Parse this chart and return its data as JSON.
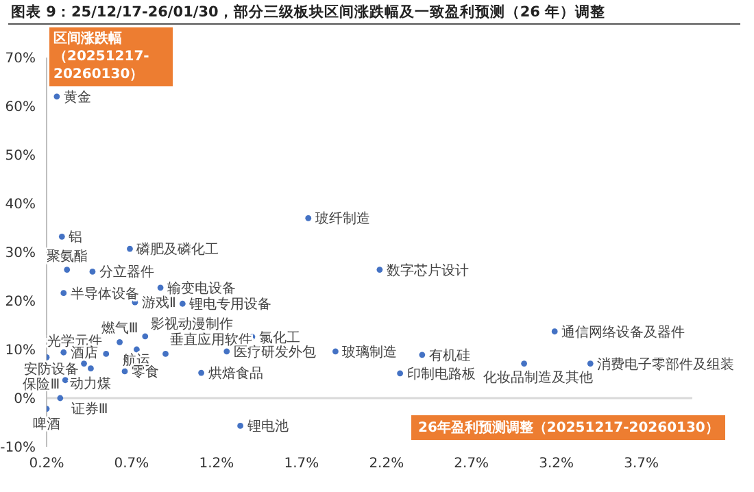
{
  "chart_data": {
    "type": "scatter",
    "title": "图表 9：25/12/17-26/01/30，部分三级板块区间涨跌幅及一致盈利预测（26 年）调整",
    "xlabel": "26年盈利预测调整（20251217-20260130）",
    "ylabel": "区间涨跌幅（20251217-20260130）",
    "marker": "circle",
    "xlim": [
      0.2,
      4.0
    ],
    "xticks": [
      {
        "value": 0.2,
        "label": "0.2%"
      },
      {
        "value": 0.7,
        "label": "0.7%"
      },
      {
        "value": 1.2,
        "label": "1.2%"
      },
      {
        "value": 1.7,
        "label": "1.7%"
      },
      {
        "value": 2.2,
        "label": "2.2%"
      },
      {
        "value": 2.7,
        "label": "2.7%"
      },
      {
        "value": 3.2,
        "label": "3.2%"
      },
      {
        "value": 3.7,
        "label": "3.7%"
      }
    ],
    "ylim": [
      -10,
      70
    ],
    "yticks": [
      {
        "value": -10,
        "label": "-10%"
      },
      {
        "value": 0,
        "label": "0%"
      },
      {
        "value": 10,
        "label": "10%"
      },
      {
        "value": 20,
        "label": "20%"
      },
      {
        "value": 30,
        "label": "30%"
      },
      {
        "value": 40,
        "label": "40%"
      },
      {
        "value": 50,
        "label": "50%"
      },
      {
        "value": 60,
        "label": "60%"
      },
      {
        "value": 70,
        "label": "70%"
      }
    ],
    "ref_lines": [
      {
        "axis": "y",
        "value": 0,
        "color": "#d9d9d9"
      }
    ],
    "series": [
      {
        "color": "#4472c4",
        "x": [
          0.26,
          0.29,
          0.69,
          0.32,
          0.47,
          0.87,
          0.3,
          0.72,
          1.0,
          0.78,
          1.41,
          0.63,
          0.55,
          0.73,
          0.3,
          0.9,
          1.26,
          1.74,
          1.9,
          0.46,
          0.66,
          0.42,
          0.2,
          0.31,
          0.28,
          0.2,
          1.34,
          1.11,
          2.16,
          3.19,
          2.41,
          2.28,
          3.01,
          3.4
        ],
        "values": [
          62,
          33.2,
          30.7,
          26.4,
          26.0,
          22.7,
          21.6,
          19.7,
          19.4,
          12.7,
          12.6,
          11.5,
          9.1,
          10.0,
          9.4,
          9.1,
          9.6,
          37.0,
          9.6,
          6.1,
          5.5,
          7.1,
          8.4,
          3.7,
          0.0,
          -2.2,
          -5.7,
          5.2,
          26.4,
          13.7,
          8.9,
          5.1,
          7.1,
          7.1
        ],
        "value_labels": [
          "黄金",
          "铝",
          "磷肥及磷化工",
          "聚氨酯",
          "分立器件",
          "输变电设备",
          "半导体设备",
          "游戏Ⅱ",
          "锂电专用设备",
          "影视动漫制作",
          "氯化工",
          "燃气Ⅲ",
          "光学元件",
          "航运",
          "酒店",
          "垂直应用软件",
          "医疗研发外包",
          "玻纤制造",
          "玻璃制造",
          "动力煤",
          "零食",
          "安防设备",
          null,
          "保险Ⅲ",
          "证券Ⅲ",
          "啤酒",
          "锂电池",
          "烘焙食品",
          "数字芯片设计",
          "通信网络设备及器件",
          "有机硅",
          "印制电路板",
          "化妆品制造及其他",
          "消费电子零部件及组装"
        ]
      }
    ]
  }
}
